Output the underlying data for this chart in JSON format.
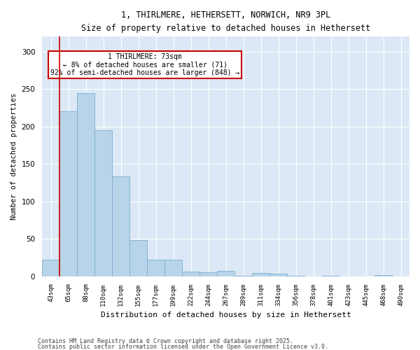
{
  "title1": "1, THIRLMERE, HETHERSETT, NORWICH, NR9 3PL",
  "title2": "Size of property relative to detached houses in Hethersett",
  "xlabel": "Distribution of detached houses by size in Hethersett",
  "ylabel": "Number of detached properties",
  "bar_labels": [
    "43sqm",
    "65sqm",
    "88sqm",
    "110sqm",
    "132sqm",
    "155sqm",
    "177sqm",
    "199sqm",
    "222sqm",
    "244sqm",
    "267sqm",
    "289sqm",
    "311sqm",
    "334sqm",
    "356sqm",
    "378sqm",
    "401sqm",
    "423sqm",
    "445sqm",
    "468sqm",
    "490sqm"
  ],
  "bar_values": [
    22,
    220,
    245,
    195,
    133,
    48,
    22,
    22,
    6,
    5,
    7,
    1,
    4,
    3,
    1,
    0,
    1,
    0,
    0,
    2,
    0
  ],
  "bar_color": "#b8d4e8",
  "bar_edge_color": "#7bafd4",
  "property_line_idx": 1,
  "annotation_text": "1 THIRLMERE: 73sqm\n← 8% of detached houses are smaller (71)\n92% of semi-detached houses are larger (848) →",
  "annotation_box_color": "#cc0000",
  "ylim": [
    0,
    320
  ],
  "yticks": [
    0,
    50,
    100,
    150,
    200,
    250,
    300
  ],
  "bg_color": "#dce8f5",
  "footnote1": "Contains HM Land Registry data © Crown copyright and database right 2025.",
  "footnote2": "Contains public sector information licensed under the Open Government Licence v3.0."
}
